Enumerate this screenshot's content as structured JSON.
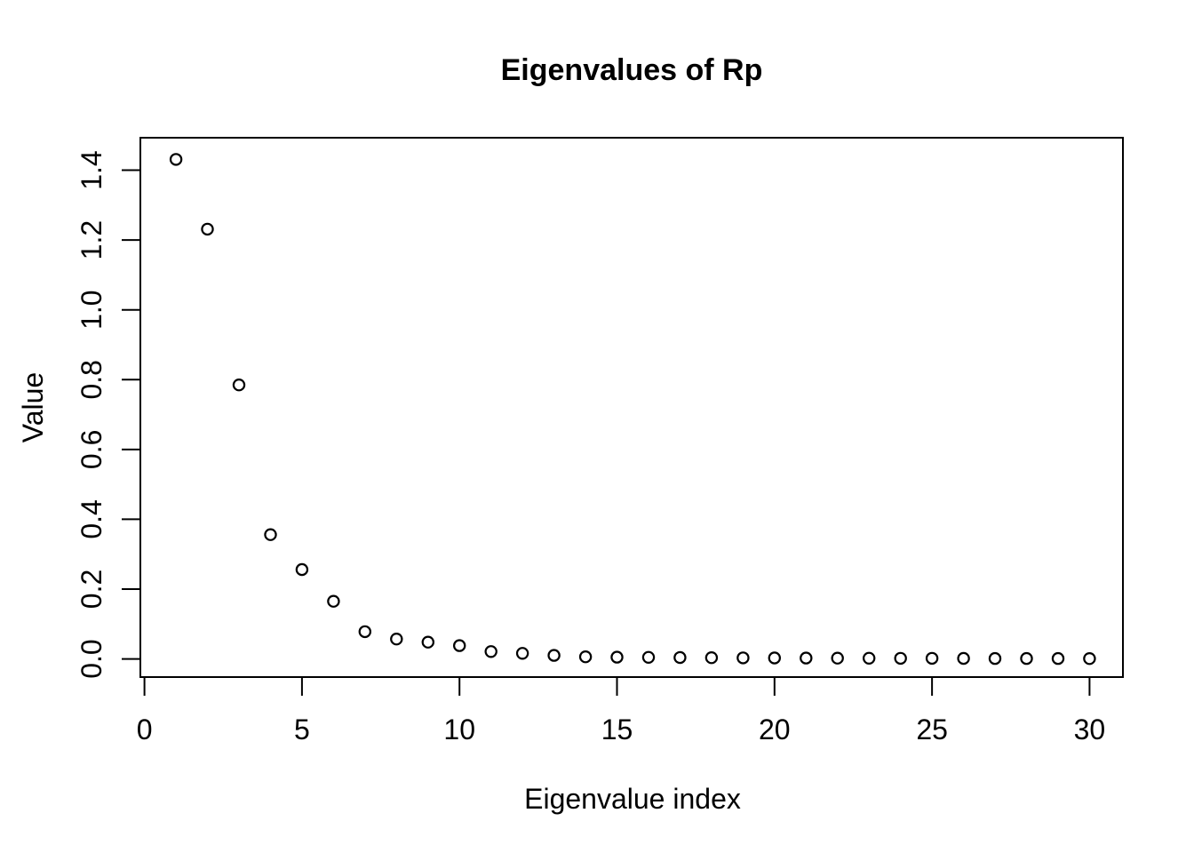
{
  "figure": {
    "background": "#ffffff"
  },
  "chart_data": {
    "type": "scatter",
    "title": "Eigenvalues of Rp",
    "xlabel": "Eigenvalue index",
    "ylabel": "Value",
    "marker": "open-circle",
    "grid": false,
    "x": [
      1,
      2,
      3,
      4,
      5,
      6,
      7,
      8,
      9,
      10,
      11,
      12,
      13,
      14,
      15,
      16,
      17,
      18,
      19,
      20,
      21,
      22,
      23,
      24,
      25,
      26,
      27,
      28,
      29,
      30
    ],
    "y": [
      1.431,
      1.231,
      0.785,
      0.356,
      0.256,
      0.165,
      0.078,
      0.057,
      0.048,
      0.038,
      0.021,
      0.016,
      0.01,
      0.006,
      0.005,
      0.0045,
      0.004,
      0.0035,
      0.003,
      0.0028,
      0.0025,
      0.0022,
      0.002,
      0.0018,
      0.0016,
      0.0014,
      0.0013,
      0.0012,
      0.0011,
      0.001
    ],
    "x_ticks": [
      0,
      5,
      10,
      15,
      20,
      25,
      30
    ],
    "y_tick_labels": [
      "0.0",
      "0.2",
      "0.4",
      "0.6",
      "0.8",
      "1.0",
      "1.2",
      "1.4"
    ],
    "xlim": [
      -0.13,
      31.06
    ],
    "ylim": [
      -0.052,
      1.493
    ],
    "colors": {
      "foreground": "#000000",
      "background": "#ffffff"
    }
  }
}
